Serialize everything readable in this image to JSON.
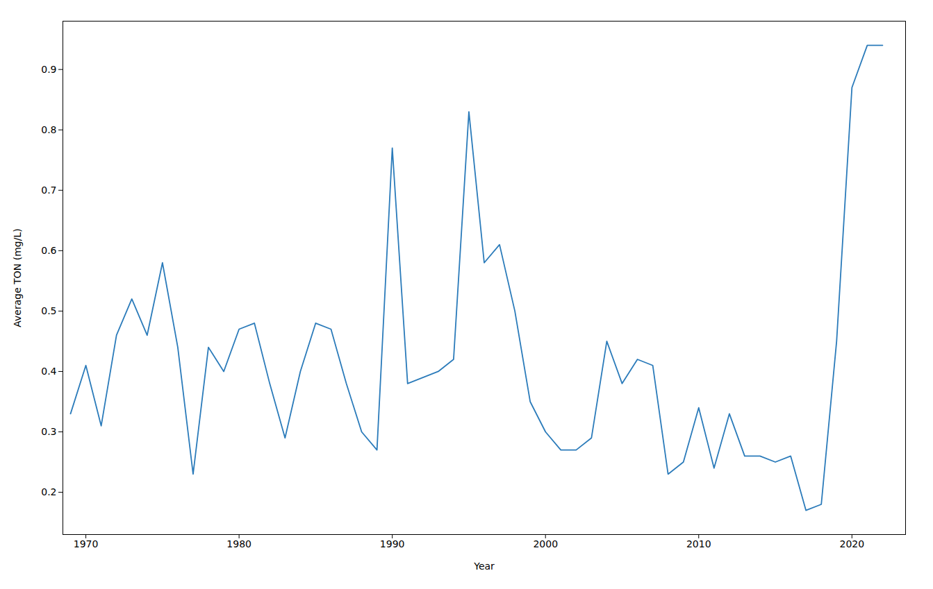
{
  "chart_data": {
    "type": "line",
    "x": [
      1969,
      1970,
      1971,
      1972,
      1973,
      1974,
      1975,
      1976,
      1977,
      1978,
      1979,
      1980,
      1981,
      1982,
      1983,
      1984,
      1985,
      1986,
      1987,
      1988,
      1989,
      1990,
      1991,
      1992,
      1993,
      1994,
      1995,
      1996,
      1997,
      1998,
      1999,
      2000,
      2001,
      2002,
      2003,
      2004,
      2005,
      2006,
      2007,
      2008,
      2009,
      2010,
      2011,
      2012,
      2013,
      2014,
      2015,
      2016,
      2017,
      2018,
      2019,
      2020,
      2021,
      2022
    ],
    "values": [
      0.33,
      0.41,
      0.31,
      0.46,
      0.52,
      0.46,
      0.58,
      0.44,
      0.23,
      0.44,
      0.4,
      0.47,
      0.48,
      0.38,
      0.29,
      0.4,
      0.48,
      0.47,
      0.38,
      0.3,
      0.27,
      0.77,
      0.38,
      0.39,
      0.4,
      0.42,
      0.83,
      0.58,
      0.61,
      0.5,
      0.35,
      0.3,
      0.27,
      0.27,
      0.29,
      0.45,
      0.38,
      0.42,
      0.41,
      0.23,
      0.25,
      0.34,
      0.24,
      0.33,
      0.26,
      0.26,
      0.25,
      0.26,
      0.17,
      0.18,
      0.45,
      0.87,
      0.94,
      0.94
    ],
    "color": "#2b7bba",
    "xlabel": "Year",
    "ylabel": "Average TON (mg/L)",
    "xlim": [
      1968.5,
      2023.5
    ],
    "ylim": [
      0.13,
      0.98
    ],
    "xticks": [
      1970,
      1980,
      1990,
      2000,
      2010,
      2020
    ],
    "yticks": [
      0.2,
      0.3,
      0.4,
      0.5,
      0.6,
      0.7,
      0.8,
      0.9
    ],
    "grid": false
  }
}
